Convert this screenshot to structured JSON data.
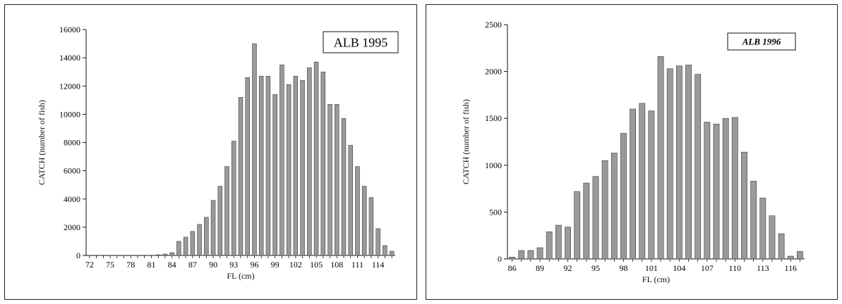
{
  "chart_data": [
    {
      "type": "bar",
      "title": "ALB 1995",
      "xlabel": "FL (cm)",
      "ylabel": "CATCH (number of fish)",
      "ylim": [
        0,
        16000
      ],
      "yticks": [
        "0",
        "2000",
        "4000",
        "6000",
        "8000",
        "10000",
        "12000",
        "14000",
        "16000"
      ],
      "xticks": [
        "72",
        "75",
        "78",
        "81",
        "84",
        "87",
        "90",
        "93",
        "96",
        "99",
        "102",
        "105",
        "108",
        "111",
        "114"
      ],
      "categories": [
        72,
        73,
        74,
        75,
        76,
        77,
        78,
        79,
        80,
        81,
        82,
        83,
        84,
        85,
        86,
        87,
        88,
        89,
        90,
        91,
        92,
        93,
        94,
        95,
        96,
        97,
        98,
        99,
        100,
        101,
        102,
        103,
        104,
        105,
        106,
        107,
        108,
        109,
        110,
        111,
        112,
        113,
        114,
        115,
        116
      ],
      "values": [
        0,
        0,
        0,
        0,
        0,
        0,
        0,
        0,
        0,
        0,
        20,
        100,
        200,
        1000,
        1300,
        1700,
        2200,
        2700,
        3900,
        4900,
        6300,
        8100,
        11200,
        12600,
        15000,
        12700,
        12700,
        11400,
        13500,
        12100,
        12700,
        12400,
        13300,
        13700,
        13000,
        10700,
        10700,
        9700,
        7800,
        6300,
        4900,
        4100,
        1900,
        700,
        300
      ],
      "grid": false
    },
    {
      "type": "bar",
      "title": "ALB 1996",
      "xlabel": "FL (cm)",
      "ylabel": "CATCH (number of fish)",
      "ylim": [
        0,
        2500
      ],
      "yticks": [
        "0",
        "500",
        "1000",
        "1500",
        "2000",
        "2500"
      ],
      "xticks": [
        "86",
        "89",
        "92",
        "95",
        "98",
        "101",
        "104",
        "107",
        "110",
        "113",
        "116"
      ],
      "categories": [
        86,
        87,
        88,
        89,
        90,
        91,
        92,
        93,
        94,
        95,
        96,
        97,
        98,
        99,
        100,
        101,
        102,
        103,
        104,
        105,
        106,
        107,
        108,
        109,
        110,
        111,
        112,
        113,
        114,
        115,
        116,
        117
      ],
      "values": [
        20,
        90,
        90,
        120,
        290,
        360,
        340,
        720,
        810,
        880,
        1050,
        1130,
        1340,
        1600,
        1660,
        1580,
        2160,
        2030,
        2060,
        2070,
        1970,
        1460,
        1440,
        1500,
        1510,
        1140,
        830,
        650,
        460,
        270,
        30,
        80
      ],
      "grid": false
    }
  ]
}
